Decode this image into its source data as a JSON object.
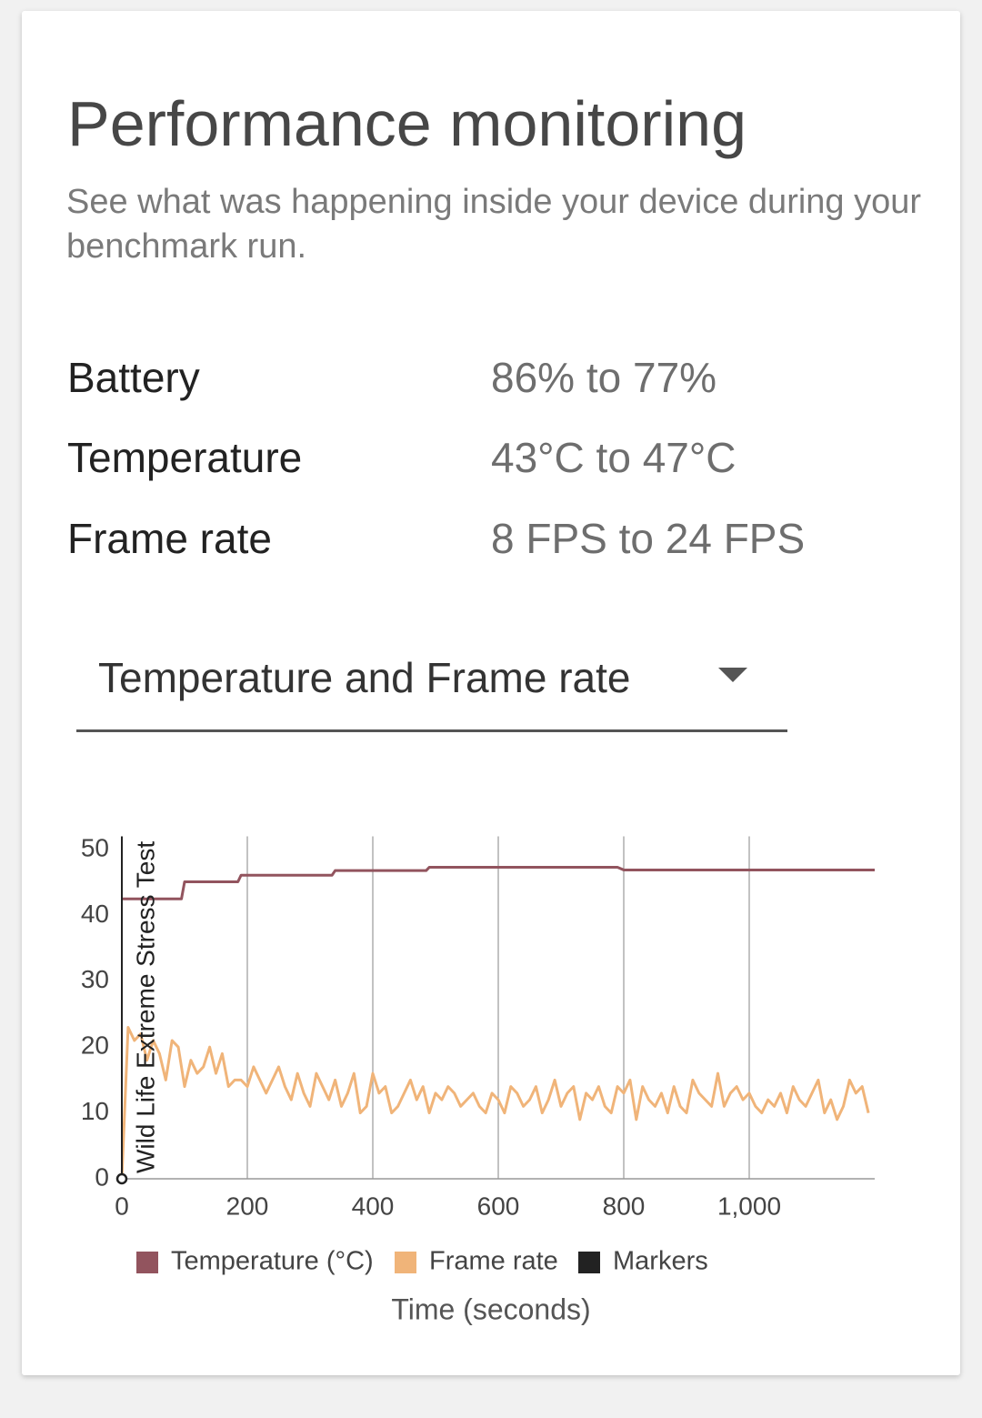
{
  "header": {
    "title": "Performance monitoring",
    "subtitle": "See what was happening inside your device during your benchmark run."
  },
  "stats": [
    {
      "label": "Battery",
      "value": "86% to 77%"
    },
    {
      "label": "Temperature",
      "value": "43°C to 47°C"
    },
    {
      "label": "Frame rate",
      "value": "8 FPS to 24 FPS"
    }
  ],
  "dropdown": {
    "label": "Temperature and Frame rate"
  },
  "chart_data": {
    "type": "line",
    "xlabel": "Time (seconds)",
    "xlim": [
      0,
      1200
    ],
    "ylim": [
      0,
      52
    ],
    "xticks": [
      0,
      200,
      400,
      600,
      800,
      {
        "value": 1000,
        "label": "1,000"
      }
    ],
    "yticks": [
      0,
      10,
      20,
      30,
      40,
      50
    ],
    "grid": "x",
    "legend": "bottom",
    "series": [
      {
        "name": "Temperature (°C)",
        "color": "#92545e",
        "x": [
          0,
          95,
          100,
          185,
          190,
          335,
          340,
          485,
          490,
          790,
          800,
          1200
        ],
        "values": [
          42.5,
          42.5,
          45.1,
          45.1,
          46.1,
          46.1,
          46.8,
          46.8,
          47.3,
          47.3,
          46.9,
          46.9
        ]
      },
      {
        "name": "Frame rate",
        "color": "#f0b479",
        "x": [
          0,
          10,
          20,
          30,
          40,
          50,
          60,
          70,
          80,
          90,
          100,
          110,
          120,
          130,
          140,
          150,
          160,
          170,
          180,
          190,
          200,
          210,
          220,
          230,
          240,
          250,
          260,
          270,
          280,
          290,
          300,
          310,
          320,
          330,
          340,
          350,
          360,
          370,
          380,
          390,
          400,
          410,
          420,
          430,
          440,
          450,
          460,
          470,
          480,
          490,
          500,
          510,
          520,
          530,
          540,
          550,
          560,
          570,
          580,
          590,
          600,
          610,
          620,
          630,
          640,
          650,
          660,
          670,
          680,
          690,
          700,
          710,
          720,
          730,
          740,
          750,
          760,
          770,
          780,
          790,
          800,
          810,
          820,
          830,
          840,
          850,
          860,
          870,
          880,
          890,
          900,
          910,
          920,
          930,
          940,
          950,
          960,
          970,
          980,
          990,
          1000,
          1010,
          1020,
          1030,
          1040,
          1050,
          1060,
          1070,
          1080,
          1090,
          1100,
          1110,
          1120,
          1130,
          1140,
          1150,
          1160,
          1170,
          1180,
          1190
        ],
        "values": [
          0,
          23,
          21,
          22,
          18,
          21,
          19,
          15,
          21,
          20,
          14,
          18,
          16,
          17,
          20,
          16,
          19,
          14,
          15,
          15,
          14,
          17,
          15,
          13,
          15,
          17,
          14,
          12,
          16,
          13,
          11,
          16,
          14,
          12,
          15,
          11,
          13,
          16,
          10,
          11,
          16,
          13,
          14,
          10,
          11,
          13,
          15,
          12,
          14,
          10,
          13,
          12,
          14,
          13,
          11,
          12,
          13,
          11,
          10,
          13,
          12,
          10,
          14,
          13,
          11,
          12,
          14,
          10,
          12,
          15,
          11,
          13,
          14,
          9,
          13,
          12,
          14,
          11,
          10,
          14,
          13,
          15,
          9,
          14,
          12,
          11,
          13,
          10,
          14,
          11,
          10,
          15,
          13,
          12,
          11,
          16,
          11,
          13,
          14,
          12,
          13,
          11,
          10,
          12,
          11,
          13,
          10,
          14,
          12,
          11,
          13,
          15,
          10,
          12,
          9,
          11,
          15,
          13,
          14,
          10
        ]
      },
      {
        "name": "Markers",
        "color": "#222222",
        "x": [
          0
        ],
        "labels": [
          "Wild Life Extreme Stress Test"
        ]
      }
    ]
  }
}
